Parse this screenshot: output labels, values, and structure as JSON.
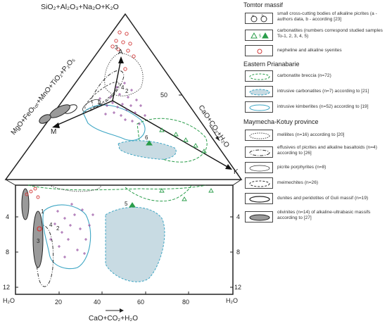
{
  "triangle": {
    "apex_label": "SiO₂+Al₂O₃+Na₂O+K₂O",
    "left_label": "MgO+FeOₜₒₜ+MnO+TiO₂+P₂O₅",
    "right_label": "CaO+CO₂+H₂O",
    "tick_50": "50",
    "marker_A": "A",
    "marker_M": "M",
    "marker_K": "K",
    "numbers": [
      "1",
      "2",
      "3",
      "4",
      "5",
      "6"
    ]
  },
  "inset": {
    "x_ticks": [
      "20",
      "40",
      "60",
      "80"
    ],
    "y_ticks": [
      "4",
      "8",
      "12"
    ],
    "y_label": "H₂O",
    "x_label": "CaO+CO₂+H₂O",
    "numbers": [
      "1",
      "2",
      "3",
      "4",
      "5"
    ]
  },
  "legend": {
    "groups": [
      {
        "title": "Tomtor massif",
        "items": [
          {
            "text": "small cross-cutting bodies of alkaline picrites (a - authors data, b - according [23]",
            "symbol": "ab-circles"
          },
          {
            "text": "carbonatites (numbers correspond studied samples To-1, 2, 3, 4, 5)",
            "symbol": "green-triangle",
            "sym_label": "5"
          },
          {
            "text": "nepheline and alkaline syenites",
            "symbol": "red-circle"
          }
        ]
      },
      {
        "title": "Eastern Prianabarie",
        "items": [
          {
            "text": "carbonatite breccia (n=72)",
            "symbol": "green-dashed"
          },
          {
            "text": "intrusive carbonatites (n=7) according to [21]",
            "symbol": "blue-dashed-fill"
          },
          {
            "text": "intrusive kimberlites (n=52) according to [19]",
            "symbol": "blue-solid"
          }
        ]
      },
      {
        "title": "Maymecha-Kotuy province",
        "items": [
          {
            "text": "melilites (n=16) according to [20]",
            "symbol": "dotted"
          },
          {
            "text": "effusives of picrites and alkaline basaltoids (n=4) according to [26]",
            "symbol": "dash-dot"
          },
          {
            "text": "picrite porphyrites (n=8)",
            "symbol": "thin-ellipse"
          },
          {
            "text": "meimechites (n=26)",
            "symbol": "dashed-ellipse"
          },
          {
            "text": "dunites and peridotites of Guli massif (n=19)",
            "symbol": "solid-ellipse"
          },
          {
            "text": "olivinites (n=14) of alkaline-ultrabasic massifs according to [27]",
            "symbol": "grey-ellipse"
          }
        ]
      }
    ]
  },
  "colors": {
    "blue": "#3ea6c4",
    "green": "#2a9d4a",
    "red": "#d23a3a",
    "purple": "#8a3d97",
    "fill": "#c8dbe3",
    "grey": "#9a9a9a"
  }
}
